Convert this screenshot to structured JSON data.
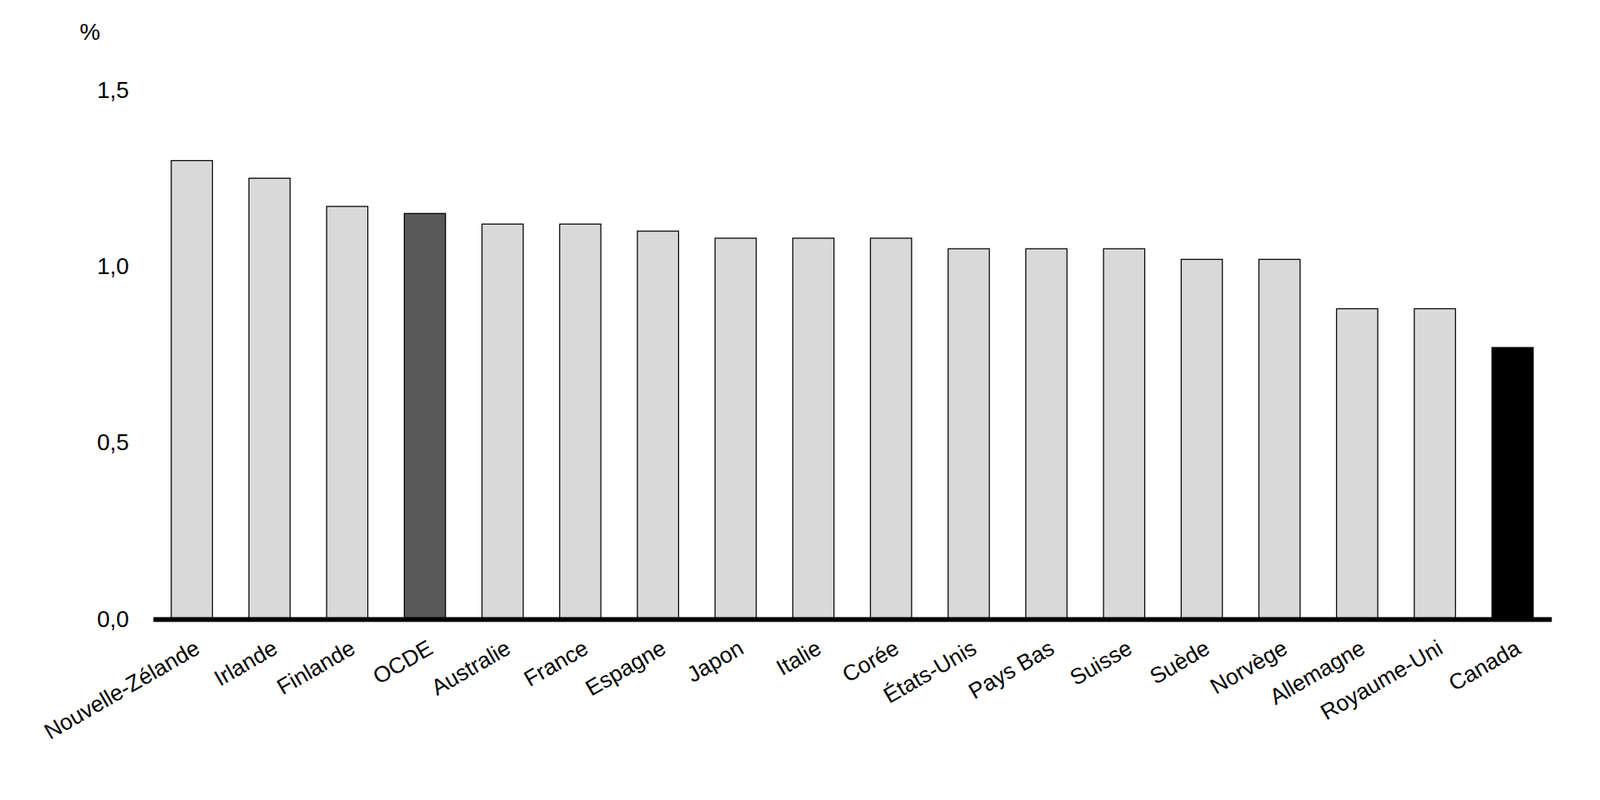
{
  "chart_data": {
    "type": "bar",
    "ylabel": "%",
    "categories": [
      "Nouvelle-Zélande",
      "Irlande",
      "Finlande",
      "OCDE",
      "Australie",
      "France",
      "Espagne",
      "Japon",
      "Italie",
      "Corée",
      "États-Unis",
      "Pays Bas",
      "Suisse",
      "Suède",
      "Norvège",
      "Allemagne",
      "Royaume-Uni",
      "Canada"
    ],
    "values": [
      1.3,
      1.25,
      1.17,
      1.15,
      1.12,
      1.12,
      1.1,
      1.08,
      1.08,
      1.08,
      1.05,
      1.05,
      1.05,
      1.02,
      1.02,
      0.88,
      0.88,
      0.77
    ],
    "colors": [
      "#d9d9d9",
      "#d9d9d9",
      "#d9d9d9",
      "#595959",
      "#d9d9d9",
      "#d9d9d9",
      "#d9d9d9",
      "#d9d9d9",
      "#d9d9d9",
      "#d9d9d9",
      "#d9d9d9",
      "#d9d9d9",
      "#d9d9d9",
      "#d9d9d9",
      "#d9d9d9",
      "#d9d9d9",
      "#d9d9d9",
      "#000000"
    ],
    "ylim": [
      0,
      1.5
    ],
    "yticks": [
      {
        "value": 0,
        "label": "0,0"
      },
      {
        "value": 0.5,
        "label": "0,5"
      },
      {
        "value": 1,
        "label": "1,0"
      },
      {
        "value": 1.5,
        "label": "1,5"
      }
    ],
    "grid": false
  }
}
